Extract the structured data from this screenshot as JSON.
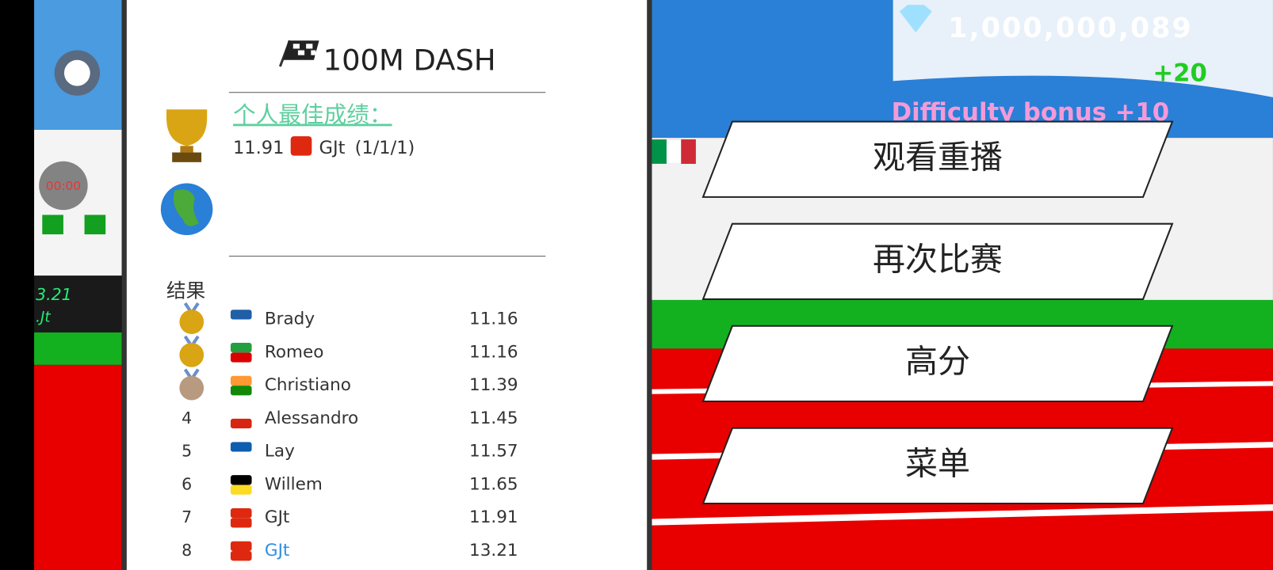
{
  "left_view": {
    "timer": "00:00",
    "time_board": "3.21",
    "name_board": ".Jt"
  },
  "panel": {
    "title": "100M DASH",
    "personal_best": {
      "label": "个人最佳成绩：",
      "time": "11.91",
      "name": "GJt",
      "detail": "(1/1/1)"
    },
    "results": {
      "label": "结果",
      "rows": [
        {
          "rank": null,
          "medal": "#d9a514",
          "flag": [
            "#1e5fa8",
            "#ffffff"
          ],
          "name": "Brady",
          "time": "11.16"
        },
        {
          "rank": null,
          "medal": "#d9a514",
          "flag": [
            "#239f40",
            "#da0000"
          ],
          "name": "Romeo",
          "time": "11.16"
        },
        {
          "rank": null,
          "medal": "#b79a80",
          "flag": [
            "#ff9933",
            "#138808"
          ],
          "name": "Christiano",
          "time": "11.39"
        },
        {
          "rank": "4",
          "medal": null,
          "flag": [
            "#ffffff",
            "#d62612"
          ],
          "name": "Alessandro",
          "time": "11.45"
        },
        {
          "rank": "5",
          "medal": null,
          "flag": [
            "#0d5eaf",
            "#ffffff"
          ],
          "name": "Lay",
          "time": "11.57"
        },
        {
          "rank": "6",
          "medal": null,
          "flag": [
            "#000000",
            "#fdda24"
          ],
          "name": "Willem",
          "time": "11.65"
        },
        {
          "rank": "7",
          "medal": null,
          "flag": [
            "#de2910",
            "#de2910"
          ],
          "name": "GJt",
          "time": "11.91"
        },
        {
          "rank": "8",
          "medal": null,
          "flag": [
            "#de2910",
            "#de2910"
          ],
          "name": "GJt",
          "time": "13.21",
          "highlight": "#2f8fe0"
        }
      ]
    }
  },
  "hud": {
    "gems": "1,000,000,089",
    "gain": "+20",
    "bonus": "Difficulty bonus +10"
  },
  "menu": {
    "buttons": [
      "观看重播",
      "再次比赛",
      "高分",
      "菜单"
    ]
  }
}
